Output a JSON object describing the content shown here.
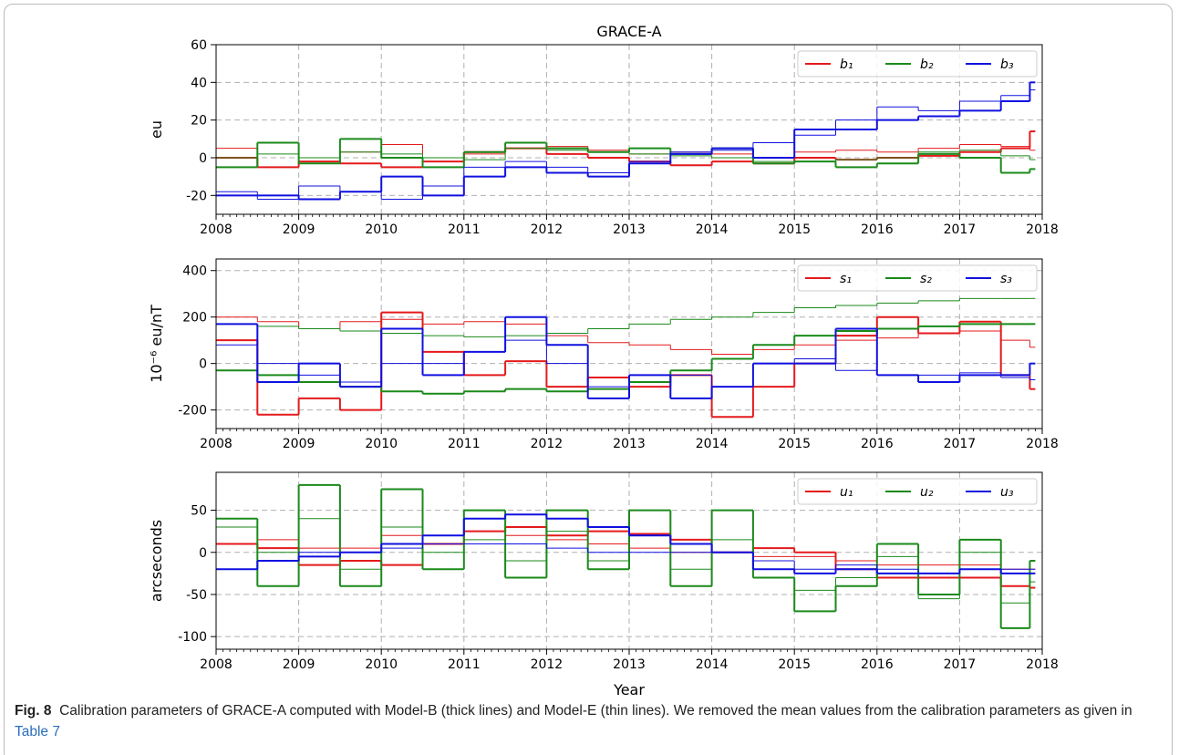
{
  "chart_data": [
    {
      "type": "line",
      "title": "GRACE-A",
      "ylabel": "eu",
      "drawstyle": "steps-post",
      "grid": true,
      "legend": "upper right",
      "x": [
        2008,
        2008.5,
        2009,
        2009.5,
        2010,
        2010.5,
        2011,
        2011.5,
        2012,
        2012.5,
        2013,
        2013.5,
        2014,
        2014.5,
        2015,
        2015.5,
        2016,
        2016.5,
        2017,
        2017.5,
        2017.85
      ],
      "xlim": [
        2008,
        2018
      ],
      "xticks": [
        2008,
        2009,
        2010,
        2011,
        2012,
        2013,
        2014,
        2015,
        2016,
        2017,
        2018
      ],
      "ylim": [
        -30,
        60
      ],
      "yticks": [
        -20,
        0,
        20,
        40,
        60
      ],
      "series": [
        {
          "name": "b₁",
          "color": "#e41a1c",
          "linewidth": 2,
          "values": [
            0,
            -5,
            -2,
            -3,
            -5,
            -2,
            3,
            5,
            2,
            0,
            -2,
            -4,
            -2,
            -3,
            0,
            -1,
            0,
            1,
            3,
            5,
            14
          ]
        },
        {
          "color": "#e41a1c",
          "linewidth": 1,
          "values": [
            5,
            8,
            0,
            3,
            7,
            0,
            2,
            5,
            6,
            4,
            2,
            3,
            2,
            0,
            3,
            4,
            3,
            5,
            7,
            6,
            4
          ]
        },
        {
          "name": "b₂",
          "color": "#1a8a1a",
          "linewidth": 2,
          "values": [
            -5,
            8,
            -3,
            10,
            0,
            -5,
            3,
            8,
            5,
            3,
            5,
            2,
            5,
            -3,
            -2,
            -5,
            -3,
            2,
            0,
            -8,
            -6
          ]
        },
        {
          "color": "#1a8a1a",
          "linewidth": 1,
          "values": [
            0,
            2,
            0,
            3,
            2,
            0,
            -1,
            5,
            4,
            3,
            2,
            1,
            0,
            -2,
            -2,
            -1,
            0,
            3,
            4,
            1,
            -1
          ]
        },
        {
          "name": "b₃",
          "color": "#1010e0",
          "linewidth": 2,
          "values": [
            -20,
            -20,
            -22,
            -18,
            -10,
            -20,
            -10,
            -5,
            -8,
            -10,
            -3,
            2,
            5,
            0,
            15,
            15,
            20,
            22,
            25,
            30,
            40
          ]
        },
        {
          "color": "#1010e0",
          "linewidth": 1,
          "values": [
            -18,
            -22,
            -15,
            -18,
            -22,
            -15,
            -5,
            -2,
            -5,
            -8,
            -2,
            3,
            4,
            8,
            12,
            20,
            27,
            25,
            30,
            33,
            36
          ]
        }
      ]
    },
    {
      "type": "line",
      "ylabel": "10⁻⁶ eu/nT",
      "drawstyle": "steps-post",
      "grid": true,
      "legend": "upper right",
      "x": [
        2008,
        2008.5,
        2009,
        2009.5,
        2010,
        2010.5,
        2011,
        2011.5,
        2012,
        2012.5,
        2013,
        2013.5,
        2014,
        2014.5,
        2015,
        2015.5,
        2016,
        2016.5,
        2017,
        2017.5,
        2017.85
      ],
      "xlim": [
        2008,
        2018
      ],
      "xticks": [
        2008,
        2009,
        2010,
        2011,
        2012,
        2013,
        2014,
        2015,
        2016,
        2017,
        2018
      ],
      "ylim": [
        -280,
        450
      ],
      "yticks": [
        -200,
        0,
        200,
        400
      ],
      "series": [
        {
          "name": "s₁",
          "color": "#e41a1c",
          "linewidth": 2,
          "values": [
            100,
            -220,
            -150,
            -200,
            220,
            50,
            -50,
            10,
            -100,
            -60,
            -100,
            -50,
            -230,
            -100,
            0,
            120,
            200,
            130,
            180,
            -50,
            -110
          ]
        },
        {
          "color": "#e41a1c",
          "linewidth": 1,
          "values": [
            200,
            180,
            150,
            180,
            190,
            170,
            180,
            170,
            120,
            90,
            80,
            60,
            40,
            60,
            80,
            100,
            110,
            130,
            140,
            100,
            70
          ]
        },
        {
          "name": "s₂",
          "color": "#1a8a1a",
          "linewidth": 2,
          "values": [
            -30,
            -50,
            -80,
            -100,
            -120,
            -130,
            -120,
            -110,
            -120,
            -110,
            -80,
            -30,
            20,
            80,
            120,
            140,
            150,
            160,
            170,
            170,
            170
          ]
        },
        {
          "color": "#1a8a1a",
          "linewidth": 1,
          "values": [
            170,
            160,
            150,
            140,
            130,
            120,
            115,
            120,
            130,
            150,
            170,
            190,
            200,
            220,
            240,
            250,
            260,
            270,
            280,
            280,
            280
          ]
        },
        {
          "name": "s₃",
          "color": "#1010e0",
          "linewidth": 2,
          "values": [
            170,
            -80,
            0,
            -100,
            150,
            -50,
            50,
            200,
            80,
            -150,
            -50,
            -150,
            -100,
            0,
            0,
            150,
            -50,
            -80,
            -50,
            -50,
            0
          ]
        },
        {
          "color": "#1010e0",
          "linewidth": 1,
          "values": [
            80,
            0,
            -50,
            -80,
            0,
            0,
            50,
            100,
            0,
            -100,
            -50,
            -50,
            -100,
            0,
            20,
            -30,
            -50,
            -50,
            -40,
            -60,
            -70
          ]
        }
      ]
    },
    {
      "type": "line",
      "ylabel": "arcseconds",
      "xlabel": "Year",
      "drawstyle": "steps-post",
      "grid": true,
      "legend": "upper right",
      "x": [
        2008,
        2008.5,
        2009,
        2009.5,
        2010,
        2010.5,
        2011,
        2011.5,
        2012,
        2012.5,
        2013,
        2013.5,
        2014,
        2014.5,
        2015,
        2015.5,
        2016,
        2016.5,
        2017,
        2017.5,
        2017.85
      ],
      "xlim": [
        2008,
        2018
      ],
      "xticks": [
        2008,
        2009,
        2010,
        2011,
        2012,
        2013,
        2014,
        2015,
        2016,
        2017,
        2018
      ],
      "ylim": [
        -115,
        95
      ],
      "yticks": [
        -100,
        -50,
        0,
        50
      ],
      "series": [
        {
          "name": "u₁",
          "color": "#e41a1c",
          "linewidth": 2,
          "values": [
            10,
            5,
            -15,
            -10,
            -15,
            10,
            25,
            30,
            20,
            25,
            22,
            15,
            0,
            5,
            0,
            -20,
            -30,
            -30,
            -30,
            -40,
            -42
          ]
        },
        {
          "color": "#e41a1c",
          "linewidth": 1,
          "values": [
            10,
            15,
            5,
            5,
            20,
            20,
            25,
            20,
            15,
            10,
            5,
            0,
            0,
            -5,
            -5,
            -10,
            -15,
            -15,
            -15,
            -20,
            -20
          ]
        },
        {
          "name": "u₂",
          "color": "#1a8a1a",
          "linewidth": 2,
          "values": [
            40,
            -40,
            80,
            -40,
            75,
            -20,
            50,
            -30,
            50,
            -20,
            50,
            -40,
            50,
            -30,
            -70,
            -40,
            10,
            -50,
            15,
            -90,
            -10
          ]
        },
        {
          "color": "#1a8a1a",
          "linewidth": 1,
          "values": [
            30,
            0,
            40,
            -20,
            30,
            0,
            15,
            -10,
            25,
            -10,
            20,
            -20,
            15,
            -30,
            -45,
            -30,
            -5,
            -55,
            0,
            -60,
            -35
          ]
        },
        {
          "name": "u₃",
          "color": "#1010e0",
          "linewidth": 2,
          "values": [
            -20,
            -10,
            -5,
            0,
            10,
            20,
            40,
            45,
            40,
            30,
            20,
            10,
            0,
            -20,
            -25,
            -20,
            -25,
            -25,
            -20,
            -25,
            -25
          ]
        },
        {
          "color": "#1010e0",
          "linewidth": 1,
          "values": [
            -20,
            -10,
            0,
            0,
            5,
            10,
            10,
            10,
            5,
            0,
            0,
            0,
            0,
            -10,
            -20,
            -15,
            -20,
            -25,
            -20,
            -20,
            -20
          ]
        }
      ]
    }
  ],
  "caption": {
    "label": "Fig. 8",
    "text": "Calibration parameters of GRACE-A computed with Model-B (thick lines) and Model-E (thin lines). We removed the mean values from the calibration parameters as given in",
    "ref": "Table 7"
  }
}
